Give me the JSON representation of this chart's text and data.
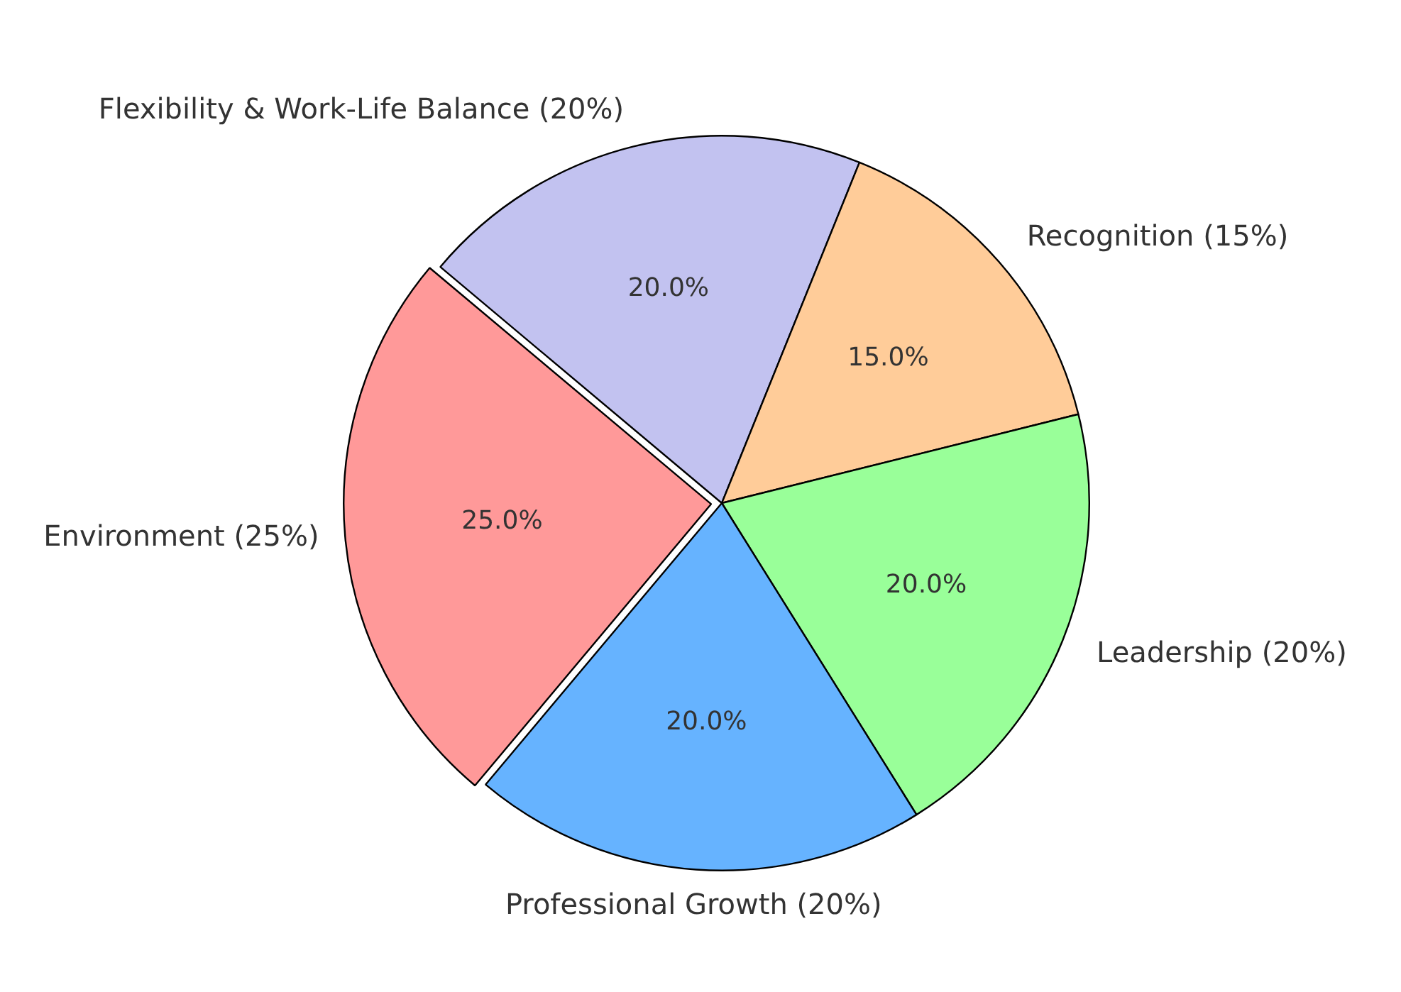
{
  "chart_data": {
    "type": "pie",
    "categories": [
      "Flexibility & Work-Life Balance (20%)",
      "Recognition (15%)",
      "Leadership (20%)",
      "Professional Growth (20%)",
      "Environment (25%)"
    ],
    "values": [
      20,
      15,
      20,
      20,
      25
    ],
    "colors": [
      "#c2c2f0",
      "#ffcc99",
      "#99ff99",
      "#66b3ff",
      "#ff9999"
    ],
    "value_labels": [
      "20.0%",
      "15.0%",
      "20.0%",
      "20.0%",
      "25.0%"
    ],
    "legend": false
  }
}
